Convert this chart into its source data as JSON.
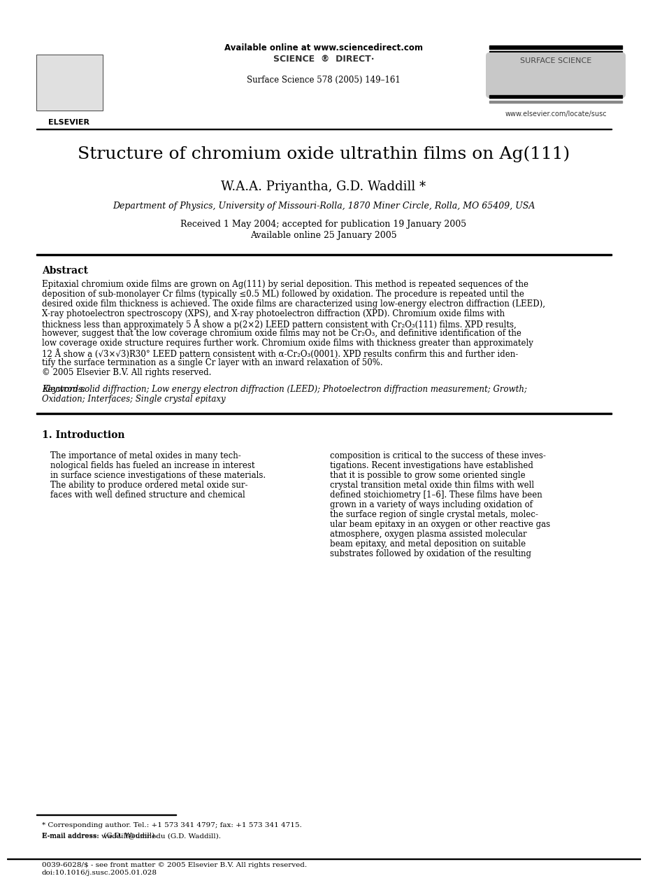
{
  "bg_color": "#ffffff",
  "title": "Structure of chromium oxide ultrathin films on Ag(111)",
  "authors": "W.A.A. Priyantha, G.D. Waddill *",
  "affiliation": "Department of Physics, University of Missouri-Rolla, 1870 Miner Circle, Rolla, MO 65409, USA",
  "dates_line1": "Received 1 May 2004; accepted for publication 19 January 2005",
  "dates_line2": "Available online 25 January 2005",
  "header_online": "Available online at www.sciencedirect.com",
  "journal_line": "Surface Science 578 (2005) 149–161",
  "journal_name": "SURFACE SCIENCE",
  "elsevier_text": "ELSEVIER",
  "website": "www.elsevier.com/locate/susc",
  "abstract_title": "Abstract",
  "abstract_text": "Epitaxial chromium oxide films are grown on Ag(111) by serial deposition. This method is repeated sequences of the deposition of sub-monolayer Cr films (typically ≤0.5 ML) followed by oxidation. The procedure is repeated until the desired oxide film thickness is achieved. The oxide films are characterized using low-energy electron diffraction (LEED), X-ray photoelectron spectroscopy (XPS), and X-ray photoelectron diffraction (XPD). Chromium oxide films with thickness less than approximately 5 Å show a p(2×2) LEED pattern consistent with Cr₂O₃(111) films. XPD results, however, suggest that the low coverage chromium oxide films may not be Cr₂O₃, and definitive identification of the low coverage oxide structure requires further work. Chromium oxide films with thickness greater than approximately 12 Å show a (√3×√3)R30° LEED pattern consistent with α-Cr₂O₃(0001). XPD results confirm this and further identify the surface termination as a single Cr layer with an inward relaxation of 50%.\n© 2005 Elsevier B.V. All rights reserved.",
  "keywords_label": "Keywords:",
  "keywords_text": "Electron-solid diffraction; Low energy electron diffraction (LEED); Photoelectron diffraction measurement; Growth; Oxidation; Interfaces; Single crystal epitaxy",
  "intro_title": "1. Introduction",
  "intro_col1": "The importance of metal oxides in many technological fields has fueled an increase in interest in surface science investigations of these materials. The ability to produce ordered metal oxide surfaces with well defined structure and chemical",
  "intro_col2": "composition is critical to the success of these investigations. Recent investigations have established that it is possible to grow some oriented single crystal transition metal oxide thin films with well defined stoichiometry [1–6]. These films have been grown in a variety of ways including oxidation of the surface region of single crystal metals, molecular beam epitaxy in an oxygen or other reactive gas atmosphere, oxygen plasma assisted molecular beam epitaxy, and metal deposition on suitable substrates followed by oxidation of the resulting",
  "footnote_star": "* Corresponding author. Tel.: +1 573 341 4797; fax: +1 573 341 4715.",
  "footnote_email": "E-mail address: waddill@umr.edu (G.D. Waddill).",
  "bottom_line1": "0039-6028/$ - see front matter © 2005 Elsevier B.V. All rights reserved.",
  "bottom_line2": "doi:10.1016/j.susc.2005.01.028"
}
